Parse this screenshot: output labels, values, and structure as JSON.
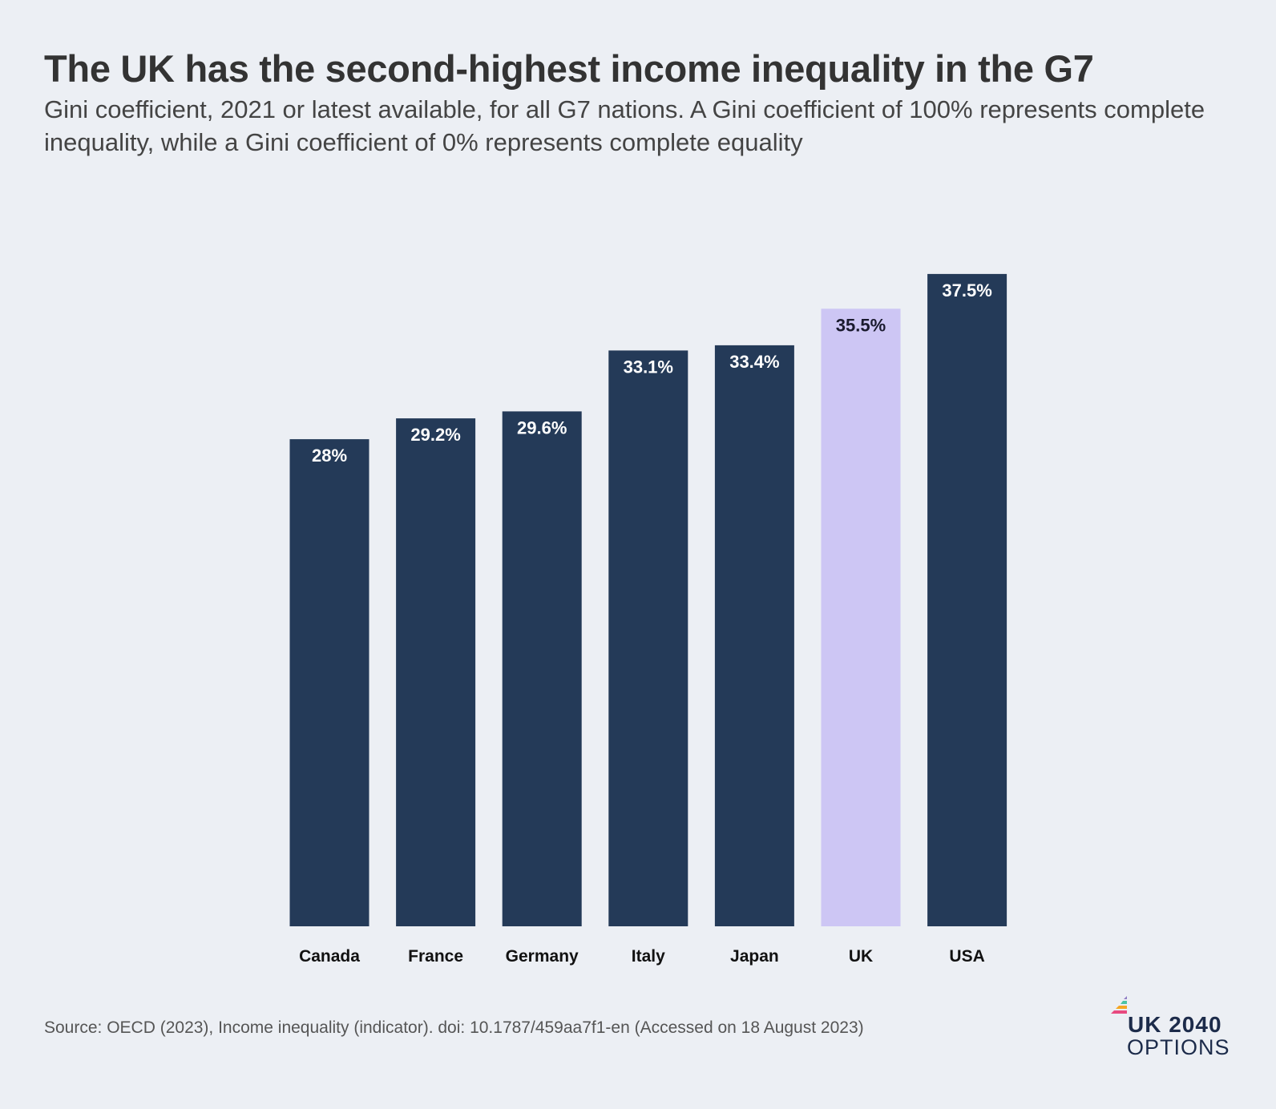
{
  "header": {
    "title": "The UK has the second-highest income inequality in the G7",
    "subtitle": "Gini coefficient, 2021 or latest available, for all G7 nations. A Gini coefficient of 100% represents complete inequality, while a Gini coefficient of 0% represents complete equality"
  },
  "chart_data": {
    "type": "bar",
    "categories": [
      "Canada",
      "France",
      "Germany",
      "Italy",
      "Japan",
      "UK",
      "USA"
    ],
    "values": [
      28,
      29.2,
      29.6,
      33.1,
      33.4,
      35.5,
      37.5
    ],
    "data_labels": [
      "28%",
      "29.2%",
      "29.6%",
      "33.1%",
      "33.4%",
      "35.5%",
      "37.5%"
    ],
    "unit": "%",
    "highlight_category": "UK",
    "colors": {
      "bar": "#243a58",
      "highlight": "#cdc6f4",
      "label_on_dark": "#ffffff",
      "label_on_highlight": "#1a1a2e"
    },
    "grid": false,
    "legend": "none"
  },
  "footer": {
    "source": "Source: OECD (2023), Income inequality (indicator). doi: 10.1787/459aa7f1-en (Accessed on 18 August 2023)"
  },
  "logo": {
    "line1": "UK 2040",
    "line2": "OPTIONS",
    "colors": [
      "#e84a7f",
      "#f5a623",
      "#4cc3a5",
      "#8e7cc3"
    ]
  }
}
